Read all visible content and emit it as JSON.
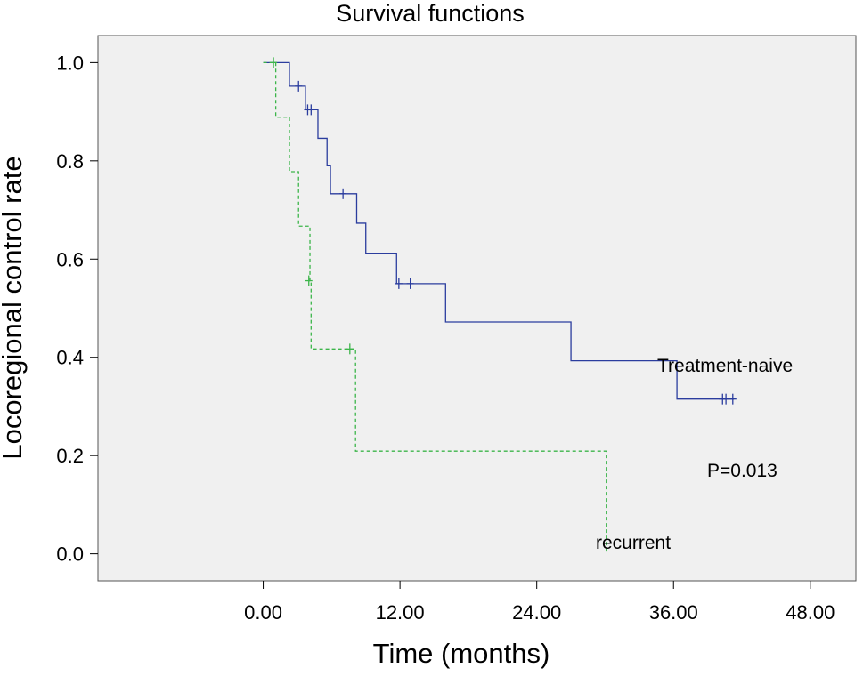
{
  "chart_data": {
    "type": "line",
    "title": "Survival functions",
    "xlabel": "Time (months)",
    "ylabel": "Locoregional control rate",
    "xlim": [
      -14.5,
      52
    ],
    "ylim": [
      -0.055,
      1.055
    ],
    "x_ticks": [
      0,
      12,
      24,
      36,
      48
    ],
    "x_tick_labels": [
      "0.00",
      "12.00",
      "24.00",
      "36.00",
      "48.00"
    ],
    "y_ticks": [
      0,
      0.2,
      0.4,
      0.6,
      0.8,
      1.0
    ],
    "y_tick_labels": [
      "0.0",
      "0.2",
      "0.4",
      "0.6",
      "0.8",
      "1.0"
    ],
    "grid": false,
    "background": "#f0f0f0",
    "series": [
      {
        "name": "Treatment-naive",
        "color": "#2b3d9e",
        "dash": "solid",
        "steps": [
          [
            0,
            1.0
          ],
          [
            2.3,
            0.952
          ],
          [
            3.7,
            0.904
          ],
          [
            4.8,
            0.846
          ],
          [
            5.6,
            0.79
          ],
          [
            5.9,
            0.733
          ],
          [
            8.2,
            0.673
          ],
          [
            9.0,
            0.612
          ],
          [
            11.7,
            0.55
          ],
          [
            16.0,
            0.472
          ],
          [
            27.0,
            0.393
          ],
          [
            36.3,
            0.315
          ],
          [
            41.3,
            0.315
          ]
        ],
        "censored": [
          [
            3.1,
            0.952
          ],
          [
            3.9,
            0.904
          ],
          [
            4.2,
            0.904
          ],
          [
            7.0,
            0.733
          ],
          [
            11.9,
            0.55
          ],
          [
            12.9,
            0.55
          ],
          [
            40.3,
            0.315
          ],
          [
            40.6,
            0.315
          ],
          [
            41.2,
            0.315
          ]
        ]
      },
      {
        "name": "recurrent",
        "color": "#3cb54a",
        "dash": "dashed",
        "steps": [
          [
            0,
            1.0
          ],
          [
            1.1,
            0.889
          ],
          [
            2.3,
            0.778
          ],
          [
            3.1,
            0.667
          ],
          [
            4.1,
            0.556
          ],
          [
            4.2,
            0.417
          ],
          [
            8.1,
            0.209
          ],
          [
            30.1,
            0.0
          ]
        ],
        "censored": [
          [
            0.9,
            1.0
          ],
          [
            4.0,
            0.556
          ],
          [
            7.6,
            0.417
          ]
        ]
      }
    ],
    "annotations": {
      "series_label_1": "Treatment-naive",
      "series_label_2": "recurrent",
      "p_value": "P=0.013"
    }
  }
}
